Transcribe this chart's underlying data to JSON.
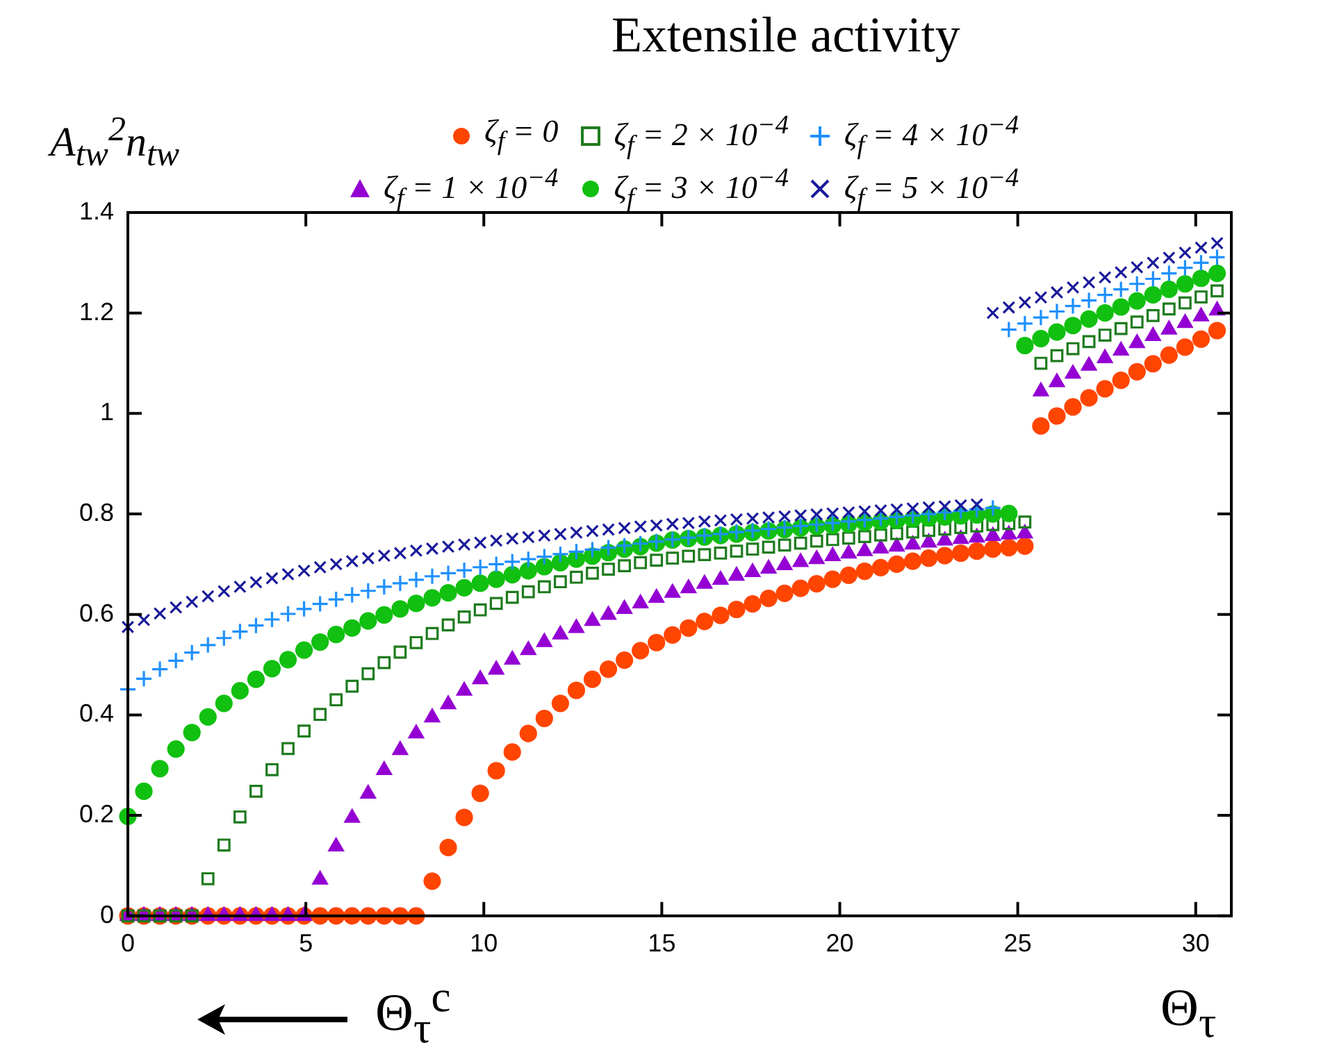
{
  "chart_data": {
    "type": "scatter",
    "title": "Extensile activity",
    "ylabel": "A$_{tw}$$^{2}$n$_{tw}$",
    "xlabel": "Θ$_{τ}$",
    "annotations": [
      "Θ$_{τ}$$^{c}$"
    ],
    "x": [
      0,
      0.45,
      0.9,
      1.35,
      1.8,
      2.25,
      2.7,
      3.15,
      3.6,
      4.05,
      4.5,
      4.95,
      5.4,
      5.85,
      6.3,
      6.75,
      7.2,
      7.65,
      8.1,
      8.55,
      9,
      9.45,
      9.9,
      10.35,
      10.8,
      11.25,
      11.7,
      12.15,
      12.6,
      13.05,
      13.5,
      13.95,
      14.4,
      14.85,
      15.3,
      15.75,
      16.2,
      16.65,
      17.1,
      17.55,
      18,
      18.45,
      18.9,
      19.35,
      19.8,
      20.25,
      20.7,
      21.15,
      21.6,
      22.05,
      22.5,
      22.95,
      23.4,
      23.85,
      24.3,
      24.75,
      25.2,
      25.65,
      26.1,
      26.55,
      27,
      27.45,
      27.9,
      28.35,
      28.8,
      29.25,
      29.7,
      30.15,
      30.6
    ],
    "series": [
      {
        "name": "ζ$_{f}$ = 0",
        "color": "#ff4500",
        "marker": "circle",
        "values": [
          0,
          0,
          0,
          0,
          0,
          0,
          0,
          0,
          0,
          0,
          0,
          0,
          0,
          0,
          0,
          0,
          0,
          0,
          0,
          0.069,
          0.136,
          0.196,
          0.244,
          0.289,
          0.326,
          0.363,
          0.393,
          0.423,
          0.449,
          0.471,
          0.491,
          0.509,
          0.528,
          0.544,
          0.559,
          0.573,
          0.586,
          0.598,
          0.61,
          0.621,
          0.632,
          0.642,
          0.652,
          0.661,
          0.67,
          0.678,
          0.686,
          0.693,
          0.7,
          0.706,
          0.712,
          0.717,
          0.722,
          0.726,
          0.73,
          0.733,
          0.736,
          0.975,
          0.995,
          1.013,
          1.031,
          1.049,
          1.066,
          1.083,
          1.099,
          1.116,
          1.132,
          1.148,
          1.165
        ]
      },
      {
        "name": "ζ$_{f}$ = 1 × 10$^{−4}$",
        "color": "#9400d3",
        "marker": "triangle",
        "values": [
          0,
          0,
          0,
          0,
          0,
          0,
          0,
          0,
          0,
          0,
          0,
          0,
          0.072,
          0.138,
          0.195,
          0.243,
          0.29,
          0.33,
          0.363,
          0.395,
          0.421,
          0.448,
          0.471,
          0.49,
          0.51,
          0.529,
          0.545,
          0.56,
          0.573,
          0.587,
          0.599,
          0.611,
          0.622,
          0.633,
          0.643,
          0.652,
          0.661,
          0.669,
          0.677,
          0.684,
          0.691,
          0.698,
          0.704,
          0.71,
          0.716,
          0.721,
          0.726,
          0.731,
          0.735,
          0.739,
          0.743,
          0.747,
          0.75,
          0.753,
          0.756,
          0.759,
          0.761,
          1.044,
          1.062,
          1.079,
          1.095,
          1.11,
          1.125,
          1.14,
          1.154,
          1.167,
          1.18,
          1.193,
          1.205
        ]
      },
      {
        "name": "ζ$_{f}$ = 2 × 10$^{−4}$",
        "color": "#1e7b1e",
        "marker": "square",
        "values": [
          0,
          0,
          0,
          0,
          0,
          0.074,
          0.141,
          0.197,
          0.248,
          0.291,
          0.333,
          0.368,
          0.401,
          0.43,
          0.457,
          0.482,
          0.504,
          0.525,
          0.544,
          0.562,
          0.579,
          0.595,
          0.609,
          0.622,
          0.634,
          0.645,
          0.655,
          0.665,
          0.674,
          0.682,
          0.69,
          0.697,
          0.703,
          0.708,
          0.712,
          0.716,
          0.719,
          0.722,
          0.726,
          0.73,
          0.734,
          0.738,
          0.742,
          0.746,
          0.749,
          0.752,
          0.755,
          0.758,
          0.761,
          0.764,
          0.767,
          0.77,
          0.773,
          0.776,
          0.779,
          0.781,
          0.784,
          1.1,
          1.115,
          1.129,
          1.143,
          1.156,
          1.169,
          1.182,
          1.195,
          1.208,
          1.22,
          1.232,
          1.244
        ]
      },
      {
        "name": "ζ$_{f}$ = 3 × 10$^{−4}$",
        "color": "#11c011",
        "marker": "circle",
        "values": [
          0.198,
          0.248,
          0.293,
          0.332,
          0.365,
          0.396,
          0.423,
          0.448,
          0.471,
          0.492,
          0.51,
          0.529,
          0.545,
          0.56,
          0.573,
          0.587,
          0.599,
          0.611,
          0.622,
          0.633,
          0.643,
          0.653,
          0.662,
          0.67,
          0.679,
          0.687,
          0.695,
          0.703,
          0.71,
          0.716,
          0.723,
          0.73,
          0.735,
          0.742,
          0.748,
          0.751,
          0.754,
          0.757,
          0.76,
          0.763,
          0.766,
          0.769,
          0.772,
          0.775,
          0.777,
          0.78,
          0.783,
          0.785,
          0.787,
          0.79,
          0.792,
          0.794,
          0.796,
          0.798,
          0.8,
          0.801,
          1.135,
          1.149,
          1.162,
          1.175,
          1.188,
          1.2,
          1.212,
          1.224,
          1.236,
          1.247,
          1.258,
          1.269,
          1.279
        ]
      },
      {
        "name": "ζ$_{f}$ = 4 × 10$^{−4}$",
        "color": "#1e90ff",
        "marker": "cross",
        "values": [
          0.451,
          0.472,
          0.491,
          0.508,
          0.524,
          0.539,
          0.553,
          0.566,
          0.578,
          0.59,
          0.601,
          0.611,
          0.621,
          0.63,
          0.639,
          0.647,
          0.655,
          0.662,
          0.669,
          0.676,
          0.682,
          0.688,
          0.694,
          0.7,
          0.705,
          0.71,
          0.715,
          0.72,
          0.725,
          0.729,
          0.733,
          0.737,
          0.741,
          0.745,
          0.749,
          0.753,
          0.757,
          0.76,
          0.764,
          0.767,
          0.77,
          0.773,
          0.776,
          0.779,
          0.782,
          0.785,
          0.788,
          0.791,
          0.794,
          0.797,
          0.8,
          0.803,
          0.806,
          0.809,
          0.812,
          1.167,
          1.179,
          1.191,
          1.203,
          1.214,
          1.225,
          1.236,
          1.247,
          1.258,
          1.268,
          1.279,
          1.29,
          1.3,
          1.311
        ]
      },
      {
        "name": "ζ$_{f}$ = 5 × 10$^{−4}$",
        "color": "#1a1a9a",
        "marker": "x",
        "values": [
          0.575,
          0.589,
          0.602,
          0.614,
          0.625,
          0.636,
          0.646,
          0.655,
          0.664,
          0.672,
          0.68,
          0.687,
          0.694,
          0.7,
          0.706,
          0.712,
          0.717,
          0.722,
          0.727,
          0.731,
          0.735,
          0.739,
          0.743,
          0.747,
          0.751,
          0.754,
          0.757,
          0.76,
          0.763,
          0.766,
          0.769,
          0.772,
          0.775,
          0.777,
          0.78,
          0.782,
          0.785,
          0.787,
          0.789,
          0.791,
          0.793,
          0.795,
          0.797,
          0.799,
          0.801,
          0.803,
          0.805,
          0.807,
          0.809,
          0.811,
          0.813,
          0.815,
          0.817,
          0.819,
          1.2,
          1.211,
          1.221,
          1.231,
          1.241,
          1.251,
          1.261,
          1.271,
          1.281,
          1.291,
          1.3,
          1.31,
          1.32,
          1.33,
          1.339
        ]
      }
    ],
    "xlim": [
      0,
      31
    ],
    "xticks": [
      0,
      5,
      10,
      15,
      20,
      25,
      30
    ],
    "ylim": [
      0,
      1.4
    ],
    "yticks": [
      0,
      0.2,
      0.4,
      0.6,
      0.8,
      1,
      1.2,
      1.4
    ],
    "grid": false,
    "legend": "top right"
  }
}
